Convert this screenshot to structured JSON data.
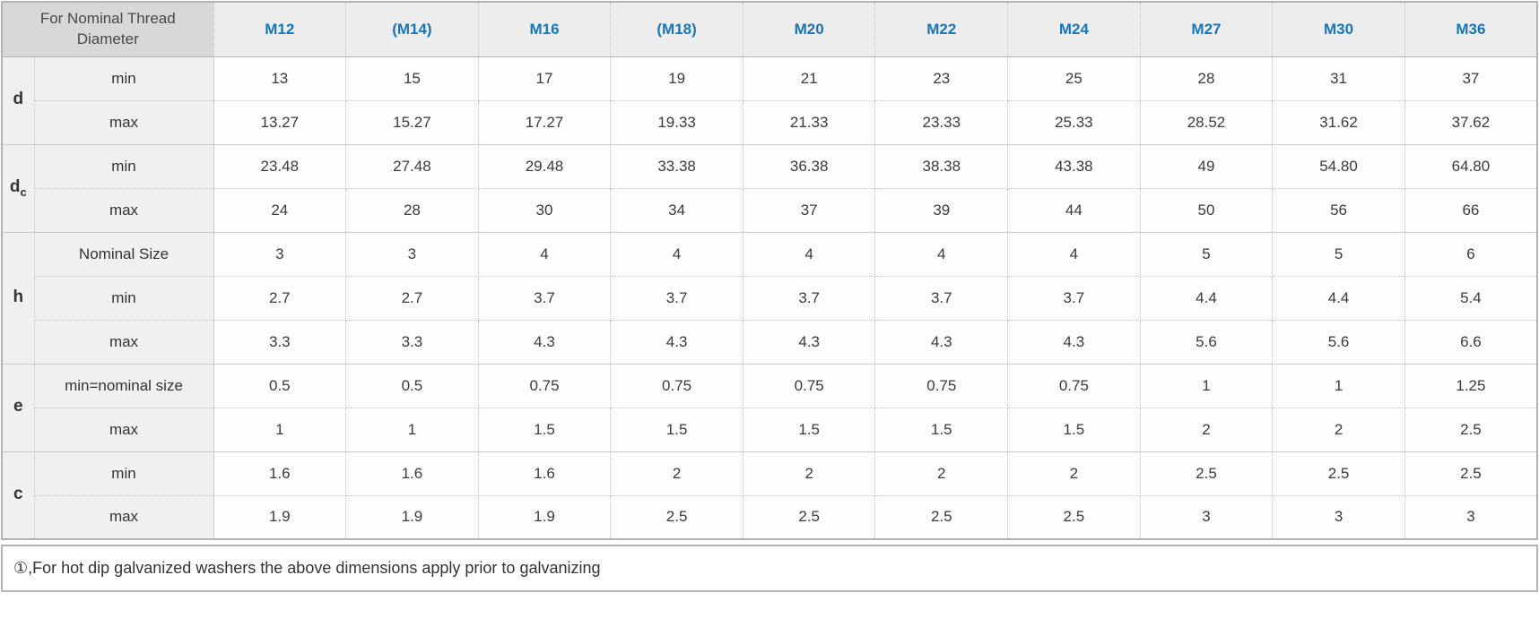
{
  "colors": {
    "header_blue": "#1a75b5",
    "corner_bg": "#d8d8d8",
    "header_bg": "#ededed",
    "label_bg": "#f0f0f0"
  },
  "table": {
    "corner_header": "For Nominal Thread Diameter",
    "columns": [
      "M12",
      "(M14)",
      "M16",
      "(M18)",
      "M20",
      "M22",
      "M24",
      "M27",
      "M30",
      "M36"
    ],
    "groups": [
      {
        "param": "d",
        "sub": "",
        "rows": [
          {
            "label": "min",
            "values": [
              "13",
              "15",
              "17",
              "19",
              "21",
              "23",
              "25",
              "28",
              "31",
              "37"
            ]
          },
          {
            "label": "max",
            "values": [
              "13.27",
              "15.27",
              "17.27",
              "19.33",
              "21.33",
              "23.33",
              "25.33",
              "28.52",
              "31.62",
              "37.62"
            ]
          }
        ]
      },
      {
        "param": "d",
        "sub": "c",
        "rows": [
          {
            "label": "min",
            "values": [
              "23.48",
              "27.48",
              "29.48",
              "33.38",
              "36.38",
              "38.38",
              "43.38",
              "49",
              "54.80",
              "64.80"
            ]
          },
          {
            "label": "max",
            "values": [
              "24",
              "28",
              "30",
              "34",
              "37",
              "39",
              "44",
              "50",
              "56",
              "66"
            ]
          }
        ]
      },
      {
        "param": "h",
        "sub": "",
        "rows": [
          {
            "label": "Nominal Size",
            "values": [
              "3",
              "3",
              "4",
              "4",
              "4",
              "4",
              "4",
              "5",
              "5",
              "6"
            ]
          },
          {
            "label": "min",
            "values": [
              "2.7",
              "2.7",
              "3.7",
              "3.7",
              "3.7",
              "3.7",
              "3.7",
              "4.4",
              "4.4",
              "5.4"
            ]
          },
          {
            "label": "max",
            "values": [
              "3.3",
              "3.3",
              "4.3",
              "4.3",
              "4.3",
              "4.3",
              "4.3",
              "5.6",
              "5.6",
              "6.6"
            ]
          }
        ]
      },
      {
        "param": "e",
        "sub": "",
        "rows": [
          {
            "label": "min=nominal size",
            "values": [
              "0.5",
              "0.5",
              "0.75",
              "0.75",
              "0.75",
              "0.75",
              "0.75",
              "1",
              "1",
              "1.25"
            ]
          },
          {
            "label": "max",
            "values": [
              "1",
              "1",
              "1.5",
              "1.5",
              "1.5",
              "1.5",
              "1.5",
              "2",
              "2",
              "2.5"
            ]
          }
        ]
      },
      {
        "param": "c",
        "sub": "",
        "rows": [
          {
            "label": "min",
            "values": [
              "1.6",
              "1.6",
              "1.6",
              "2",
              "2",
              "2",
              "2",
              "2.5",
              "2.5",
              "2.5"
            ]
          },
          {
            "label": "max",
            "values": [
              "1.9",
              "1.9",
              "1.9",
              "2.5",
              "2.5",
              "2.5",
              "2.5",
              "3",
              "3",
              "3"
            ]
          }
        ]
      }
    ],
    "footnote": "①,For hot dip galvanized washers the above dimensions apply prior to galvanizing"
  }
}
